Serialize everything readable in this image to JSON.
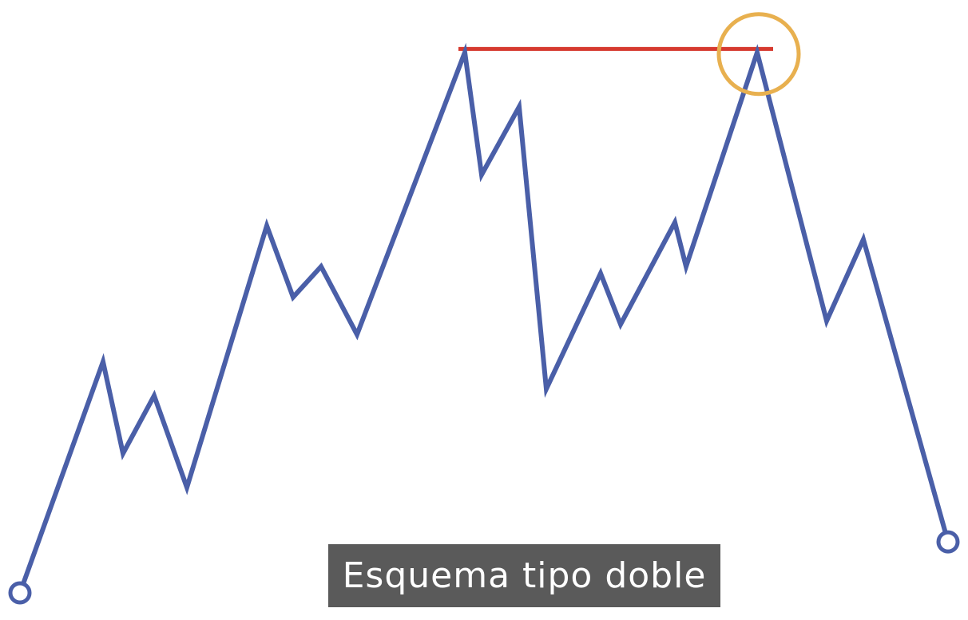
{
  "caption": "Esquema tipo doble",
  "colors": {
    "price_line": "#4a5fa8",
    "resistance_line": "#d63a2f",
    "highlight_circle": "#e8b04f",
    "caption_background": "#5a5a5a",
    "caption_text": "#ffffff",
    "background": "#ffffff"
  },
  "price_path": [
    {
      "step": 0,
      "level": 0
    },
    {
      "step": 1,
      "level": 68
    },
    {
      "step": 2,
      "level": 41
    },
    {
      "step": 3,
      "level": 58
    },
    {
      "step": 4,
      "level": 31
    },
    {
      "step": 5,
      "level": 108
    },
    {
      "step": 6,
      "level": 87
    },
    {
      "step": 7,
      "level": 96
    },
    {
      "step": 8,
      "level": 76
    },
    {
      "step": 9,
      "level": 159
    },
    {
      "step": 10,
      "level": 123
    },
    {
      "step": 11,
      "level": 143
    },
    {
      "step": 12,
      "level": 60
    },
    {
      "step": 13,
      "level": 94
    },
    {
      "step": 14,
      "level": 79
    },
    {
      "step": 15,
      "level": 109
    },
    {
      "step": 16,
      "level": 96
    },
    {
      "step": 17,
      "level": 159
    },
    {
      "step": 18,
      "level": 80
    },
    {
      "step": 19,
      "level": 104
    },
    {
      "step": 20,
      "level": 15
    }
  ],
  "resistance_level": 160,
  "highlighted_step": 17,
  "endpoint_markers": [
    "start-marker",
    "end-marker"
  ]
}
